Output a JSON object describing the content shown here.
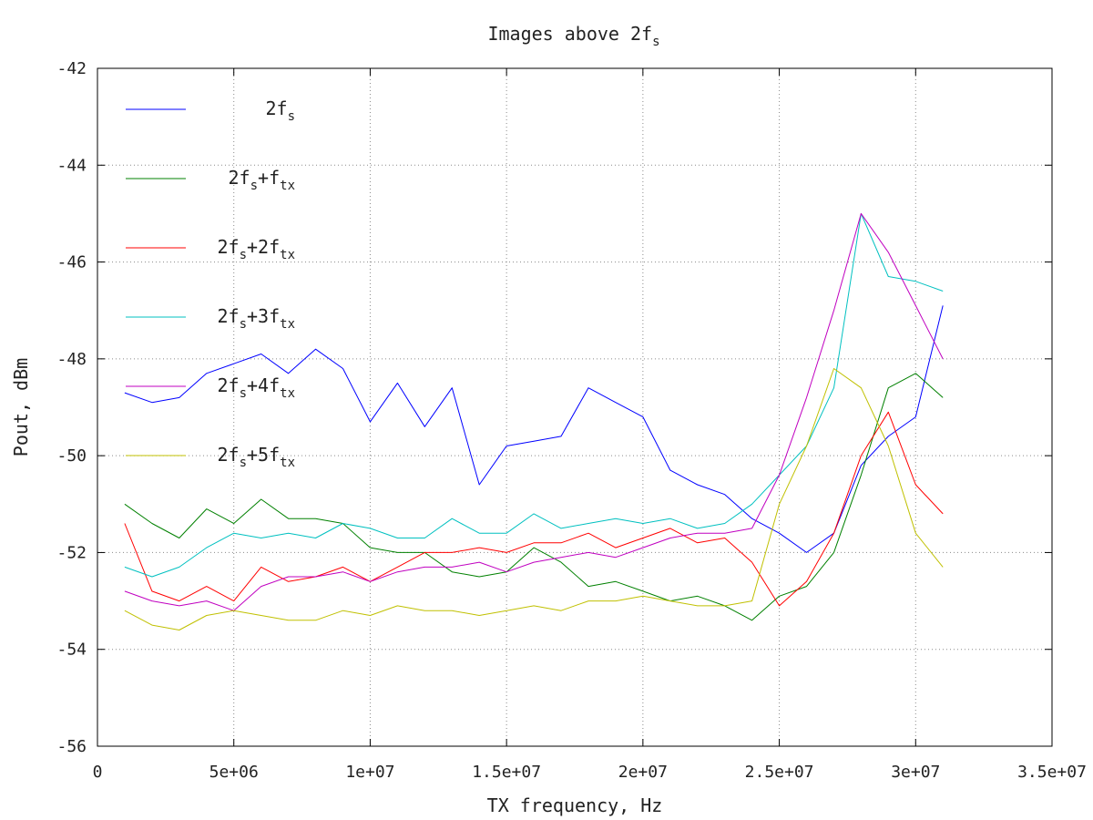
{
  "chart_data": {
    "type": "line",
    "title": {
      "main": "Images above 2f",
      "sub": "s"
    },
    "xlabel": "TX frequency, Hz",
    "ylabel": "Pout, dBm",
    "xlim": [
      0,
      35000000
    ],
    "ylim": [
      -56,
      -42
    ],
    "grid": true,
    "legend_position": "top-left",
    "x_ticks": [
      {
        "value": 0,
        "label": "0"
      },
      {
        "value": 5000000,
        "label": "5e+06"
      },
      {
        "value": 10000000,
        "label": "1e+07"
      },
      {
        "value": 15000000,
        "label": "1.5e+07"
      },
      {
        "value": 20000000,
        "label": "2e+07"
      },
      {
        "value": 25000000,
        "label": "2.5e+07"
      },
      {
        "value": 30000000,
        "label": "3e+07"
      },
      {
        "value": 35000000,
        "label": "3.5e+07"
      }
    ],
    "y_ticks": [
      {
        "value": -42,
        "label": "-42"
      },
      {
        "value": -44,
        "label": "-44"
      },
      {
        "value": -46,
        "label": "-46"
      },
      {
        "value": -48,
        "label": "-48"
      },
      {
        "value": -50,
        "label": "-50"
      },
      {
        "value": -52,
        "label": "-52"
      },
      {
        "value": -54,
        "label": "-54"
      },
      {
        "value": -56,
        "label": "-56"
      }
    ],
    "series": [
      {
        "legend": [
          {
            "t": "2f",
            "s": ""
          },
          {
            "t": "s",
            "s": "sub"
          }
        ],
        "color": "#0000ff",
        "x": [
          1000000,
          2000000,
          3000000,
          4000000,
          5000000,
          6000000,
          7000000,
          8000000,
          9000000,
          10000000,
          11000000,
          12000000,
          13000000,
          14000000,
          15000000,
          16000000,
          17000000,
          18000000,
          19000000,
          20000000,
          21000000,
          22000000,
          23000000,
          24000000,
          25000000,
          26000000,
          27000000,
          28000000,
          29000000,
          30000000,
          31000000
        ],
        "y": [
          -48.7,
          -48.9,
          -48.8,
          -48.3,
          -48.1,
          -47.9,
          -48.3,
          -47.8,
          -48.2,
          -49.3,
          -48.5,
          -49.4,
          -48.6,
          -50.6,
          -49.8,
          -49.7,
          -49.6,
          -48.6,
          -48.9,
          -49.2,
          -50.3,
          -50.6,
          -50.8,
          -51.3,
          -51.6,
          -52.0,
          -51.6,
          -50.2,
          -49.6,
          -49.2,
          -46.9
        ]
      },
      {
        "legend": [
          {
            "t": "2f",
            "s": ""
          },
          {
            "t": "s",
            "s": "sub"
          },
          {
            "t": "+f",
            "s": ""
          },
          {
            "t": "tx",
            "s": "sub"
          }
        ],
        "color": "#008000",
        "x": [
          1000000,
          2000000,
          3000000,
          4000000,
          5000000,
          6000000,
          7000000,
          8000000,
          9000000,
          10000000,
          11000000,
          12000000,
          13000000,
          14000000,
          15000000,
          16000000,
          17000000,
          18000000,
          19000000,
          20000000,
          21000000,
          22000000,
          23000000,
          24000000,
          25000000,
          26000000,
          27000000,
          28000000,
          29000000,
          30000000,
          31000000
        ],
        "y": [
          -51.0,
          -51.4,
          -51.7,
          -51.1,
          -51.4,
          -50.9,
          -51.3,
          -51.3,
          -51.4,
          -51.9,
          -52.0,
          -52.0,
          -52.4,
          -52.5,
          -52.4,
          -51.9,
          -52.2,
          -52.7,
          -52.6,
          -52.8,
          -53.0,
          -52.9,
          -53.1,
          -53.4,
          -52.9,
          -52.7,
          -52.0,
          -50.4,
          -48.6,
          -48.3,
          -48.8
        ]
      },
      {
        "legend": [
          {
            "t": "2f",
            "s": ""
          },
          {
            "t": "s",
            "s": "sub"
          },
          {
            "t": "+2f",
            "s": ""
          },
          {
            "t": "tx",
            "s": "sub"
          }
        ],
        "color": "#ff0000",
        "x": [
          1000000,
          2000000,
          3000000,
          4000000,
          5000000,
          6000000,
          7000000,
          8000000,
          9000000,
          10000000,
          11000000,
          12000000,
          13000000,
          14000000,
          15000000,
          16000000,
          17000000,
          18000000,
          19000000,
          20000000,
          21000000,
          22000000,
          23000000,
          24000000,
          25000000,
          26000000,
          27000000,
          28000000,
          29000000,
          30000000,
          31000000
        ],
        "y": [
          -51.4,
          -52.8,
          -53.0,
          -52.7,
          -53.0,
          -52.3,
          -52.6,
          -52.5,
          -52.3,
          -52.6,
          -52.3,
          -52.0,
          -52.0,
          -51.9,
          -52.0,
          -51.8,
          -51.8,
          -51.6,
          -51.9,
          -51.7,
          -51.5,
          -51.8,
          -51.7,
          -52.2,
          -53.1,
          -52.6,
          -51.6,
          -50.0,
          -49.1,
          -50.6,
          -51.2
        ]
      },
      {
        "legend": [
          {
            "t": "2f",
            "s": ""
          },
          {
            "t": "s",
            "s": "sub"
          },
          {
            "t": "+3f",
            "s": ""
          },
          {
            "t": "tx",
            "s": "sub"
          }
        ],
        "color": "#00c0c0",
        "x": [
          1000000,
          2000000,
          3000000,
          4000000,
          5000000,
          6000000,
          7000000,
          8000000,
          9000000,
          10000000,
          11000000,
          12000000,
          13000000,
          14000000,
          15000000,
          16000000,
          17000000,
          18000000,
          19000000,
          20000000,
          21000000,
          22000000,
          23000000,
          24000000,
          25000000,
          26000000,
          27000000,
          28000000,
          29000000,
          30000000,
          31000000
        ],
        "y": [
          -52.3,
          -52.5,
          -52.3,
          -51.9,
          -51.6,
          -51.7,
          -51.6,
          -51.7,
          -51.4,
          -51.5,
          -51.7,
          -51.7,
          -51.3,
          -51.6,
          -51.6,
          -51.2,
          -51.5,
          -51.4,
          -51.3,
          -51.4,
          -51.3,
          -51.5,
          -51.4,
          -51.0,
          -50.4,
          -49.8,
          -48.6,
          -45.0,
          -46.3,
          -46.4,
          -46.6
        ]
      },
      {
        "legend": [
          {
            "t": "2f",
            "s": ""
          },
          {
            "t": "s",
            "s": "sub"
          },
          {
            "t": "+4f",
            "s": ""
          },
          {
            "t": "tx",
            "s": "sub"
          }
        ],
        "color": "#c000c0",
        "x": [
          1000000,
          2000000,
          3000000,
          4000000,
          5000000,
          6000000,
          7000000,
          8000000,
          9000000,
          10000000,
          11000000,
          12000000,
          13000000,
          14000000,
          15000000,
          16000000,
          17000000,
          18000000,
          19000000,
          20000000,
          21000000,
          22000000,
          23000000,
          24000000,
          25000000,
          26000000,
          27000000,
          28000000,
          29000000,
          30000000,
          31000000
        ],
        "y": [
          -52.8,
          -53.0,
          -53.1,
          -53.0,
          -53.2,
          -52.7,
          -52.5,
          -52.5,
          -52.4,
          -52.6,
          -52.4,
          -52.3,
          -52.3,
          -52.2,
          -52.4,
          -52.2,
          -52.1,
          -52.0,
          -52.1,
          -51.9,
          -51.7,
          -51.6,
          -51.6,
          -51.5,
          -50.4,
          -48.8,
          -47.0,
          -45.0,
          -45.8,
          -46.9,
          -48.0
        ]
      },
      {
        "legend": [
          {
            "t": "2f",
            "s": ""
          },
          {
            "t": "s",
            "s": "sub"
          },
          {
            "t": "+5f",
            "s": ""
          },
          {
            "t": "tx",
            "s": "sub"
          }
        ],
        "color": "#c0c000",
        "x": [
          1000000,
          2000000,
          3000000,
          4000000,
          5000000,
          6000000,
          7000000,
          8000000,
          9000000,
          10000000,
          11000000,
          12000000,
          13000000,
          14000000,
          15000000,
          16000000,
          17000000,
          18000000,
          19000000,
          20000000,
          21000000,
          22000000,
          23000000,
          24000000,
          25000000,
          26000000,
          27000000,
          28000000,
          29000000,
          30000000,
          31000000
        ],
        "y": [
          -53.2,
          -53.5,
          -53.6,
          -53.3,
          -53.2,
          -53.3,
          -53.4,
          -53.4,
          -53.2,
          -53.3,
          -53.1,
          -53.2,
          -53.2,
          -53.3,
          -53.2,
          -53.1,
          -53.2,
          -53.0,
          -53.0,
          -52.9,
          -53.0,
          -53.1,
          -53.1,
          -53.0,
          -51.0,
          -49.8,
          -48.2,
          -48.6,
          -49.8,
          -51.6,
          -52.3
        ]
      }
    ]
  }
}
